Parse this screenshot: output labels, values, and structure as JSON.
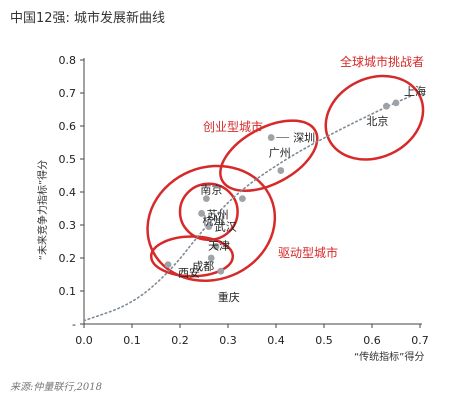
{
  "title": "中国12强: 城市发展新曲线",
  "source": "来源:仲量联行,2018",
  "colors": {
    "accent": "#d62a2a",
    "point": "#9ea3a8",
    "trend": "#7d8a96",
    "axis": "#444444"
  },
  "chart_data": {
    "type": "scatter",
    "title": "中国12强: 城市发展新曲线",
    "xlabel": "“传统指标”得分",
    "ylabel": "“未来竞争力指标”得分",
    "xlim": [
      0.0,
      0.7
    ],
    "ylim": [
      0.0,
      0.8
    ],
    "xticks": [
      "0.0",
      "0.1",
      "0.2",
      "0.3",
      "0.4",
      "0.5",
      "0.6",
      "0.7"
    ],
    "yticks": [
      "-",
      "0.1",
      "0.2",
      "0.3",
      "0.4",
      "0.5",
      "0.6",
      "0.7",
      "0.8"
    ],
    "grid": false,
    "points": [
      {
        "name": "上海",
        "x": 0.65,
        "y": 0.67
      },
      {
        "name": "北京",
        "x": 0.63,
        "y": 0.66
      },
      {
        "name": "深圳",
        "x": 0.39,
        "y": 0.565
      },
      {
        "name": "广州",
        "x": 0.41,
        "y": 0.465
      },
      {
        "name": "杭州",
        "x": 0.33,
        "y": 0.38
      },
      {
        "name": "南京",
        "x": 0.255,
        "y": 0.38
      },
      {
        "name": "苏州",
        "x": 0.245,
        "y": 0.335
      },
      {
        "name": "武汉",
        "x": 0.26,
        "y": 0.295
      },
      {
        "name": "天津",
        "x": 0.275,
        "y": 0.235
      },
      {
        "name": "成都",
        "x": 0.265,
        "y": 0.2
      },
      {
        "name": "西安",
        "x": 0.175,
        "y": 0.18
      },
      {
        "name": "重庆",
        "x": 0.285,
        "y": 0.16
      }
    ],
    "clusters": [
      "全球城市挑战者",
      "创业型城市",
      "驱动型城市"
    ]
  }
}
